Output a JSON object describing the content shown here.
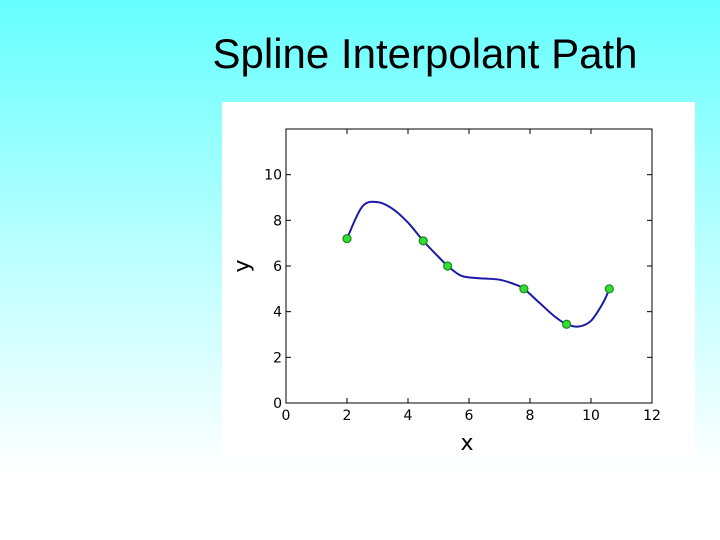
{
  "slide": {
    "title": "Spline Interpolant Path"
  },
  "chart_data": {
    "type": "line",
    "title": "",
    "xlabel": "x",
    "ylabel": "y",
    "xlim": [
      0,
      12
    ],
    "ylim": [
      0,
      12
    ],
    "xticks": [
      0,
      2,
      4,
      6,
      8,
      10,
      12
    ],
    "yticks": [
      0,
      2,
      4,
      6,
      8,
      10
    ],
    "grid": false,
    "legend": "none",
    "series": [
      {
        "kind": "curve",
        "color": "#1a1aa6",
        "x": [
          2.0,
          2.5,
          3.0,
          3.5,
          4.0,
          4.5,
          5.0,
          5.3,
          5.7,
          6.0,
          6.5,
          7.0,
          7.5,
          7.8,
          8.3,
          8.8,
          9.2,
          9.6,
          10.0,
          10.4,
          10.6
        ],
        "y": [
          7.2,
          8.6,
          8.8,
          8.5,
          7.9,
          7.1,
          6.4,
          6.0,
          5.6,
          5.5,
          5.45,
          5.4,
          5.2,
          5.0,
          4.4,
          3.8,
          3.45,
          3.35,
          3.6,
          4.4,
          5.0
        ]
      },
      {
        "kind": "points",
        "color": "#33dd33",
        "edge": "#1a8a1a",
        "x": [
          2.0,
          4.5,
          5.3,
          7.8,
          9.2,
          10.6
        ],
        "y": [
          7.2,
          7.1,
          6.0,
          5.0,
          3.45,
          5.0
        ]
      }
    ]
  }
}
